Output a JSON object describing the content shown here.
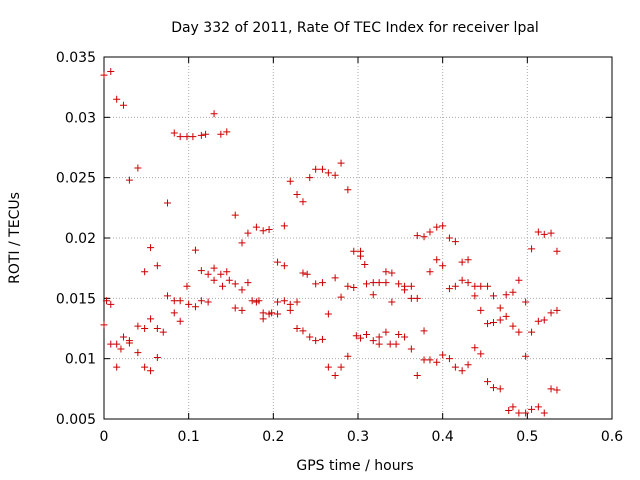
{
  "chart_data": {
    "type": "scatter",
    "title": "Day 332 of 2011, Rate Of TEC Index for receiver lpal",
    "xlabel": "GPS time / hours",
    "ylabel": "ROTI / TECUs",
    "xlim": [
      0,
      0.6
    ],
    "ylim": [
      0.005,
      0.035
    ],
    "xticks": [
      0,
      0.1,
      0.2,
      0.3,
      0.4,
      0.5,
      0.6
    ],
    "xtick_labels": [
      "0",
      "0.1",
      "0.2",
      "0.3",
      "0.4",
      "0.5",
      "0.6"
    ],
    "yticks": [
      0.005,
      0.01,
      0.015,
      0.02,
      0.025,
      0.03,
      0.035
    ],
    "ytick_labels": [
      "0.005",
      "0.01",
      "0.015",
      "0.02",
      "0.025",
      "0.03",
      "0.035"
    ],
    "grid": true,
    "marker": "+",
    "color": "#cc0000",
    "series": [
      {
        "name": "ROTI",
        "points": [
          [
            0.0,
            0.0335
          ],
          [
            0.0,
            0.0128
          ],
          [
            0.003,
            0.0148
          ],
          [
            0.008,
            0.0338
          ],
          [
            0.008,
            0.0145
          ],
          [
            0.008,
            0.0112
          ],
          [
            0.015,
            0.0315
          ],
          [
            0.015,
            0.0112
          ],
          [
            0.015,
            0.0093
          ],
          [
            0.02,
            0.0108
          ],
          [
            0.023,
            0.031
          ],
          [
            0.023,
            0.0118
          ],
          [
            0.03,
            0.0248
          ],
          [
            0.03,
            0.0115
          ],
          [
            0.03,
            0.0113
          ],
          [
            0.04,
            0.0258
          ],
          [
            0.04,
            0.0127
          ],
          [
            0.04,
            0.0105
          ],
          [
            0.048,
            0.0172
          ],
          [
            0.048,
            0.0125
          ],
          [
            0.048,
            0.0093
          ],
          [
            0.055,
            0.0192
          ],
          [
            0.055,
            0.0133
          ],
          [
            0.055,
            0.009
          ],
          [
            0.063,
            0.0177
          ],
          [
            0.063,
            0.0125
          ],
          [
            0.063,
            0.0101
          ],
          [
            0.07,
            0.0122
          ],
          [
            0.075,
            0.0229
          ],
          [
            0.075,
            0.0152
          ],
          [
            0.083,
            0.0287
          ],
          [
            0.083,
            0.0148
          ],
          [
            0.083,
            0.0138
          ],
          [
            0.09,
            0.0284
          ],
          [
            0.09,
            0.0148
          ],
          [
            0.09,
            0.0131
          ],
          [
            0.098,
            0.0284
          ],
          [
            0.098,
            0.016
          ],
          [
            0.1,
            0.0145
          ],
          [
            0.105,
            0.0284
          ],
          [
            0.108,
            0.0143
          ],
          [
            0.108,
            0.019
          ],
          [
            0.115,
            0.0285
          ],
          [
            0.115,
            0.0173
          ],
          [
            0.115,
            0.0148
          ],
          [
            0.12,
            0.0286
          ],
          [
            0.123,
            0.017
          ],
          [
            0.123,
            0.0147
          ],
          [
            0.13,
            0.0303
          ],
          [
            0.13,
            0.0175
          ],
          [
            0.13,
            0.0165
          ],
          [
            0.138,
            0.0286
          ],
          [
            0.138,
            0.017
          ],
          [
            0.14,
            0.016
          ],
          [
            0.145,
            0.0288
          ],
          [
            0.145,
            0.0172
          ],
          [
            0.148,
            0.0165
          ],
          [
            0.155,
            0.0219
          ],
          [
            0.155,
            0.0162
          ],
          [
            0.155,
            0.0142
          ],
          [
            0.163,
            0.0196
          ],
          [
            0.163,
            0.0157
          ],
          [
            0.163,
            0.014
          ],
          [
            0.17,
            0.0204
          ],
          [
            0.17,
            0.0163
          ],
          [
            0.175,
            0.0148
          ],
          [
            0.18,
            0.0209
          ],
          [
            0.18,
            0.0147
          ],
          [
            0.183,
            0.0148
          ],
          [
            0.188,
            0.0206
          ],
          [
            0.188,
            0.0138
          ],
          [
            0.188,
            0.0133
          ],
          [
            0.195,
            0.0207
          ],
          [
            0.195,
            0.0137
          ],
          [
            0.198,
            0.0138
          ],
          [
            0.205,
            0.018
          ],
          [
            0.205,
            0.0147
          ],
          [
            0.205,
            0.0137
          ],
          [
            0.213,
            0.021
          ],
          [
            0.213,
            0.0177
          ],
          [
            0.213,
            0.0148
          ],
          [
            0.22,
            0.0247
          ],
          [
            0.22,
            0.0145
          ],
          [
            0.22,
            0.014
          ],
          [
            0.228,
            0.0236
          ],
          [
            0.228,
            0.0147
          ],
          [
            0.228,
            0.0125
          ],
          [
            0.235,
            0.023
          ],
          [
            0.235,
            0.0171
          ],
          [
            0.235,
            0.0123
          ],
          [
            0.24,
            0.017
          ],
          [
            0.243,
            0.025
          ],
          [
            0.243,
            0.0118
          ],
          [
            0.25,
            0.0257
          ],
          [
            0.25,
            0.0162
          ],
          [
            0.25,
            0.0115
          ],
          [
            0.258,
            0.0257
          ],
          [
            0.258,
            0.0163
          ],
          [
            0.258,
            0.0116
          ],
          [
            0.265,
            0.0254
          ],
          [
            0.265,
            0.0137
          ],
          [
            0.265,
            0.0093
          ],
          [
            0.273,
            0.0252
          ],
          [
            0.273,
            0.0167
          ],
          [
            0.273,
            0.0086
          ],
          [
            0.28,
            0.0262
          ],
          [
            0.28,
            0.0151
          ],
          [
            0.28,
            0.0093
          ],
          [
            0.288,
            0.024
          ],
          [
            0.288,
            0.016
          ],
          [
            0.288,
            0.0102
          ],
          [
            0.295,
            0.0189
          ],
          [
            0.295,
            0.0159
          ],
          [
            0.298,
            0.0119
          ],
          [
            0.303,
            0.0189
          ],
          [
            0.303,
            0.0185
          ],
          [
            0.303,
            0.0117
          ],
          [
            0.308,
            0.0178
          ],
          [
            0.31,
            0.0162
          ],
          [
            0.31,
            0.012
          ],
          [
            0.318,
            0.0163
          ],
          [
            0.318,
            0.0153
          ],
          [
            0.318,
            0.0115
          ],
          [
            0.325,
            0.0163
          ],
          [
            0.325,
            0.0118
          ],
          [
            0.325,
            0.0112
          ],
          [
            0.333,
            0.0172
          ],
          [
            0.333,
            0.0163
          ],
          [
            0.333,
            0.0122
          ],
          [
            0.338,
            0.0112
          ],
          [
            0.34,
            0.0171
          ],
          [
            0.34,
            0.0147
          ],
          [
            0.345,
            0.0112
          ],
          [
            0.348,
            0.0162
          ],
          [
            0.348,
            0.012
          ],
          [
            0.355,
            0.016
          ],
          [
            0.355,
            0.0157
          ],
          [
            0.355,
            0.0118
          ],
          [
            0.363,
            0.016
          ],
          [
            0.363,
            0.015
          ],
          [
            0.363,
            0.0108
          ],
          [
            0.37,
            0.0202
          ],
          [
            0.37,
            0.015
          ],
          [
            0.37,
            0.0086
          ],
          [
            0.378,
            0.0201
          ],
          [
            0.378,
            0.0123
          ],
          [
            0.378,
            0.0099
          ],
          [
            0.385,
            0.0205
          ],
          [
            0.385,
            0.0172
          ],
          [
            0.385,
            0.0099
          ],
          [
            0.393,
            0.0209
          ],
          [
            0.393,
            0.0182
          ],
          [
            0.393,
            0.0097
          ],
          [
            0.4,
            0.021
          ],
          [
            0.4,
            0.0177
          ],
          [
            0.4,
            0.0103
          ],
          [
            0.408,
            0.02
          ],
          [
            0.408,
            0.0158
          ],
          [
            0.408,
            0.01
          ],
          [
            0.415,
            0.0197
          ],
          [
            0.415,
            0.016
          ],
          [
            0.415,
            0.0093
          ],
          [
            0.423,
            0.018
          ],
          [
            0.423,
            0.0165
          ],
          [
            0.423,
            0.009
          ],
          [
            0.43,
            0.0182
          ],
          [
            0.43,
            0.0163
          ],
          [
            0.43,
            0.0095
          ],
          [
            0.438,
            0.016
          ],
          [
            0.438,
            0.0152
          ],
          [
            0.438,
            0.0109
          ],
          [
            0.445,
            0.016
          ],
          [
            0.445,
            0.014
          ],
          [
            0.445,
            0.0104
          ],
          [
            0.453,
            0.016
          ],
          [
            0.453,
            0.0129
          ],
          [
            0.453,
            0.0081
          ],
          [
            0.46,
            0.0152
          ],
          [
            0.46,
            0.013
          ],
          [
            0.46,
            0.0076
          ],
          [
            0.468,
            0.0142
          ],
          [
            0.468,
            0.0132
          ],
          [
            0.468,
            0.0075
          ],
          [
            0.475,
            0.0153
          ],
          [
            0.475,
            0.0135
          ],
          [
            0.478,
            0.0057
          ],
          [
            0.483,
            0.0155
          ],
          [
            0.483,
            0.0127
          ],
          [
            0.483,
            0.006
          ],
          [
            0.49,
            0.0165
          ],
          [
            0.49,
            0.0122
          ],
          [
            0.49,
            0.0055
          ],
          [
            0.498,
            0.0147
          ],
          [
            0.498,
            0.0102
          ],
          [
            0.498,
            0.0055
          ],
          [
            0.505,
            0.0191
          ],
          [
            0.505,
            0.0122
          ],
          [
            0.505,
            0.0058
          ],
          [
            0.513,
            0.0205
          ],
          [
            0.513,
            0.0131
          ],
          [
            0.513,
            0.006
          ],
          [
            0.52,
            0.0203
          ],
          [
            0.52,
            0.0132
          ],
          [
            0.52,
            0.0055
          ],
          [
            0.528,
            0.0204
          ],
          [
            0.528,
            0.0138
          ],
          [
            0.528,
            0.0075
          ],
          [
            0.535,
            0.0189
          ],
          [
            0.535,
            0.014
          ],
          [
            0.535,
            0.0074
          ]
        ]
      }
    ]
  }
}
